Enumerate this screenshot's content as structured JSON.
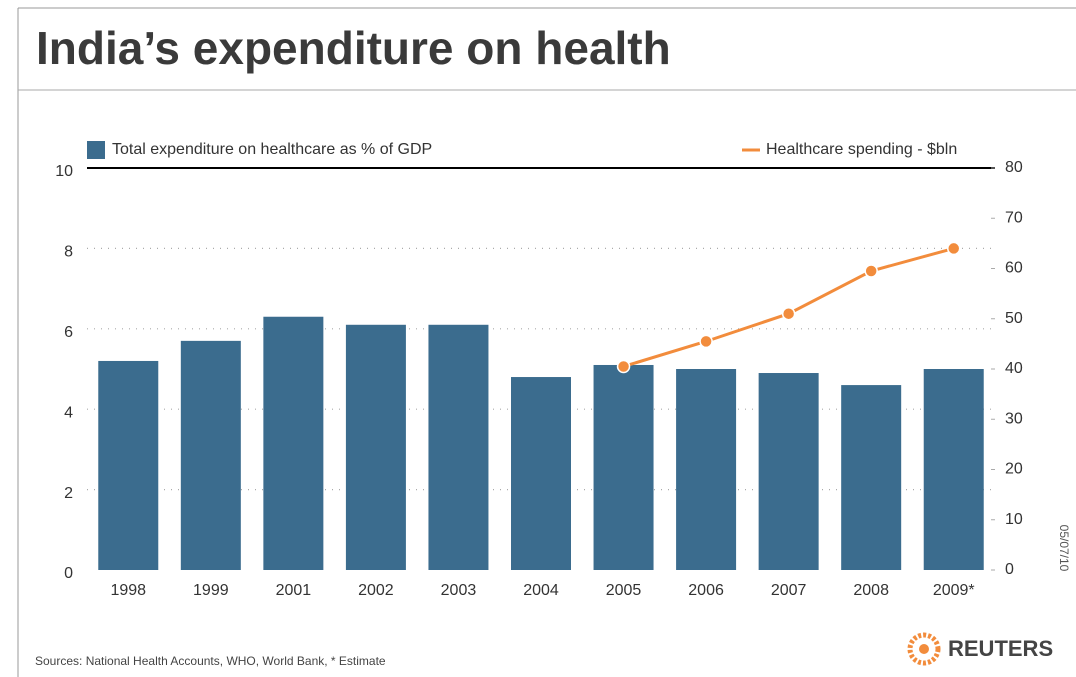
{
  "chart_data": {
    "type": "bar-line",
    "title": "India’s expenditure on health",
    "categories": [
      "1998",
      "1999",
      "2001",
      "2002",
      "2003",
      "2004",
      "2005",
      "2006",
      "2007",
      "2008",
      "2009*"
    ],
    "series": [
      {
        "name": "Total expenditure on healthcare as % of GDP",
        "type": "bar",
        "color": "#3b6c8e",
        "values": [
          5.2,
          5.7,
          6.3,
          6.1,
          6.1,
          4.8,
          5.1,
          5.0,
          4.9,
          4.6,
          5.0
        ]
      },
      {
        "name": "Healthcare spending - $bln",
        "type": "line",
        "axis": "y2",
        "color": "#f28c3c",
        "values": [
          null,
          null,
          null,
          null,
          null,
          null,
          40.5,
          45.5,
          51,
          59.5,
          64
        ]
      }
    ],
    "ylim": [
      0,
      10
    ],
    "yticks": [
      0,
      2,
      4,
      6,
      8,
      10
    ],
    "y2lim": [
      0,
      80
    ],
    "y2ticks": [
      0,
      10,
      20,
      30,
      40,
      50,
      60,
      70,
      80
    ],
    "grid": true,
    "legend": "top",
    "source": "Sources: National Health Accounts, WHO, World Bank, * Estimate",
    "credit": "REUTERS",
    "date": "05/07/10"
  }
}
